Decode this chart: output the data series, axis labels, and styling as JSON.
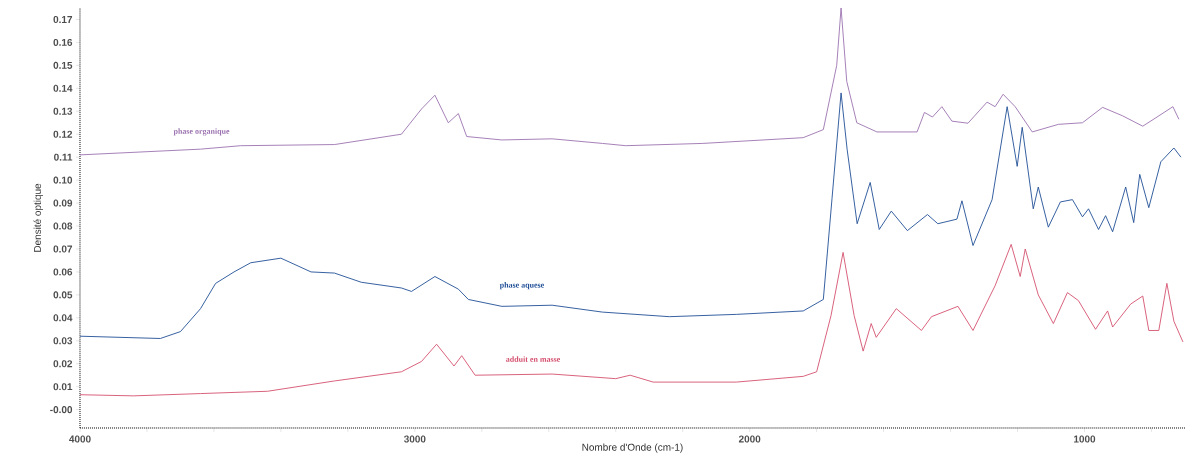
{
  "chart_data": {
    "type": "line",
    "xlabel": "Nombre d'Onde (cm-1)",
    "ylabel": "Densité optique",
    "xlim": [
      4000,
      700
    ],
    "ylim": [
      -0.008,
      0.175
    ],
    "xticks": [
      4000,
      {
        "value": 3800,
        "label": null
      },
      {
        "value": 3600,
        "label": null
      },
      {
        "value": 3400,
        "label": null
      },
      {
        "value": 3200,
        "label": null
      },
      3000,
      {
        "value": 2800,
        "label": null
      },
      {
        "value": 2600,
        "label": null
      },
      {
        "value": 2400,
        "label": null
      },
      {
        "value": 2200,
        "label": null
      },
      2000,
      {
        "value": 1800,
        "label": null
      },
      {
        "value": 1600,
        "label": null
      },
      {
        "value": 1400,
        "label": null
      },
      {
        "value": 1200,
        "label": null
      },
      1000,
      {
        "value": 800,
        "label": null
      }
    ],
    "yticks": [
      {
        "value": 0,
        "label": "-0.00"
      },
      {
        "value": 0.01,
        "label": "0.01"
      },
      {
        "value": 0.02,
        "label": "0.02"
      },
      {
        "value": 0.03,
        "label": "0.03"
      },
      {
        "value": 0.04,
        "label": "0.04"
      },
      {
        "value": 0.05,
        "label": "0.05"
      },
      {
        "value": 0.06,
        "label": "0.06"
      },
      {
        "value": 0.07,
        "label": "0.07"
      },
      {
        "value": 0.08,
        "label": "0.08"
      },
      {
        "value": 0.09,
        "label": "0.09"
      },
      {
        "value": 0.1,
        "label": "0.10"
      },
      {
        "value": 0.11,
        "label": "0.11"
      },
      {
        "value": 0.12,
        "label": "0.12"
      },
      {
        "value": 0.13,
        "label": "0.13"
      },
      {
        "value": 0.14,
        "label": "0.14"
      },
      {
        "value": 0.15,
        "label": "0.15"
      },
      {
        "value": 0.16,
        "label": "0.16"
      },
      {
        "value": 0.17,
        "label": "0.17"
      }
    ],
    "series": [
      {
        "name": "phase organique",
        "color": "#9b72b0",
        "x": [
          4000,
          3640,
          3520,
          3240,
          3040,
          2980,
          2940,
          2900,
          2870,
          2845,
          2740,
          2590,
          2440,
          2370,
          2140,
          1840,
          1780,
          1740,
          1727,
          1710,
          1680,
          1620,
          1500,
          1478,
          1454,
          1426,
          1396,
          1348,
          1291,
          1267,
          1243,
          1207,
          1156,
          1078,
          1006,
          946,
          886,
          826,
          778,
          736,
          718
        ],
        "values": [
          0.111,
          0.1135,
          0.115,
          0.1155,
          0.12,
          0.131,
          0.137,
          0.125,
          0.129,
          0.119,
          0.1175,
          0.118,
          0.116,
          0.115,
          0.116,
          0.1185,
          0.122,
          0.15,
          0.175,
          0.143,
          0.125,
          0.121,
          0.121,
          0.1295,
          0.1275,
          0.132,
          0.1257,
          0.1248,
          0.134,
          0.132,
          0.1374,
          0.132,
          0.121,
          0.1243,
          0.125,
          0.1317,
          0.128,
          0.1235,
          0.128,
          0.132,
          0.1265
        ]
      },
      {
        "name": "phase aquese",
        "color": "#1f4e96",
        "x": [
          4000,
          3760,
          3700,
          3640,
          3595,
          3540,
          3490,
          3400,
          3310,
          3240,
          3160,
          3040,
          3010,
          2940,
          2870,
          2840,
          2740,
          2590,
          2440,
          2240,
          2040,
          1840,
          1780,
          1754,
          1727,
          1709,
          1679,
          1640,
          1613,
          1577,
          1529,
          1469,
          1438,
          1381,
          1366,
          1333,
          1276,
          1231,
          1201,
          1186,
          1153,
          1138,
          1108,
          1072,
          1036,
          1006,
          988,
          958,
          937,
          916,
          877,
          853,
          835,
          808,
          772,
          733,
          712
        ],
        "values": [
          0.032,
          0.031,
          0.034,
          0.044,
          0.055,
          0.06,
          0.064,
          0.066,
          0.06,
          0.0595,
          0.0555,
          0.053,
          0.0515,
          0.058,
          0.0525,
          0.048,
          0.045,
          0.0455,
          0.0425,
          0.0405,
          0.0415,
          0.043,
          0.048,
          0.092,
          0.138,
          0.1135,
          0.081,
          0.099,
          0.0785,
          0.0865,
          0.078,
          0.085,
          0.081,
          0.083,
          0.091,
          0.0715,
          0.0915,
          0.132,
          0.106,
          0.123,
          0.0875,
          0.097,
          0.0795,
          0.0905,
          0.0915,
          0.084,
          0.0875,
          0.0785,
          0.0845,
          0.0775,
          0.097,
          0.0815,
          0.1025,
          0.088,
          0.108,
          0.114,
          0.11
        ]
      },
      {
        "name": "adduit en masse",
        "color": "#d4506e",
        "x": [
          4000,
          3840,
          3640,
          3440,
          3240,
          3040,
          2980,
          2935,
          2883,
          2860,
          2820,
          2590,
          2400,
          2357,
          2288,
          2040,
          1840,
          1800,
          1757,
          1721,
          1688,
          1661,
          1637,
          1622,
          1562,
          1487,
          1457,
          1378,
          1333,
          1267,
          1219,
          1192,
          1177,
          1138,
          1093,
          1051,
          1018,
          967,
          931,
          916,
          862,
          826,
          808,
          778,
          754,
          733,
          706
        ],
        "values": [
          0.0065,
          0.006,
          0.007,
          0.008,
          0.0125,
          0.0165,
          0.021,
          0.0285,
          0.019,
          0.0235,
          0.015,
          0.0155,
          0.0135,
          0.015,
          0.012,
          0.012,
          0.0145,
          0.0165,
          0.041,
          0.0685,
          0.041,
          0.0255,
          0.0375,
          0.0315,
          0.044,
          0.0345,
          0.0405,
          0.045,
          0.0345,
          0.054,
          0.072,
          0.058,
          0.07,
          0.05,
          0.0375,
          0.051,
          0.0475,
          0.035,
          0.043,
          0.036,
          0.046,
          0.0495,
          0.0345,
          0.0345,
          0.055,
          0.0385,
          0.0295
        ]
      }
    ]
  }
}
